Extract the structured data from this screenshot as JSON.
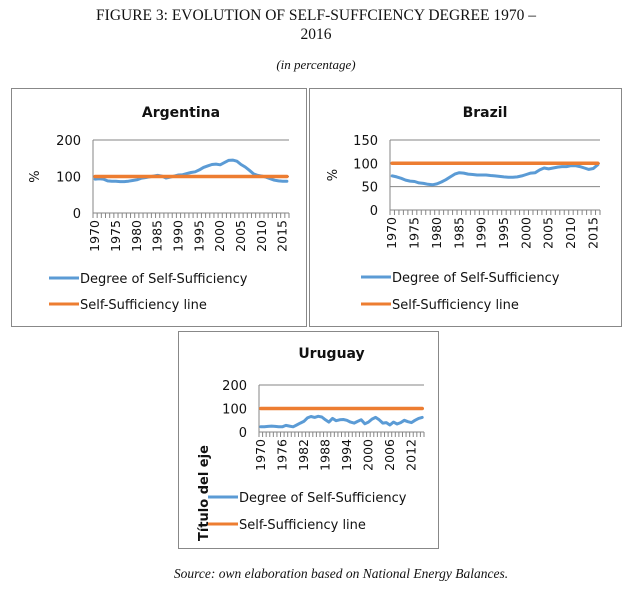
{
  "figure": {
    "title_line1": "FIGURE 3: EVOLUTION OF SELF-SUFFCIENCY DEGREE 1970 –",
    "title_line2": "2016",
    "subtitle": "(in percentage)",
    "source": "Source: own elaboration based on National Energy Balances."
  },
  "colors": {
    "degree": "#5B9BD5",
    "line": "#ED7D31",
    "grid": "#868686",
    "axis": "#868686"
  },
  "chart_data": [
    {
      "type": "line",
      "title": "Argentina",
      "ylabel": "%",
      "xlabel": "",
      "ylim": [
        0,
        200
      ],
      "yticks": [
        0,
        100,
        200
      ],
      "x_tick_labels": [
        "1970",
        "1975",
        "1980",
        "1985",
        "1990",
        "1995",
        "2000",
        "2005",
        "2010",
        "2015"
      ],
      "grid": true,
      "legend": "bottom",
      "x": [
        1970,
        1971,
        1972,
        1973,
        1974,
        1975,
        1976,
        1977,
        1978,
        1979,
        1980,
        1981,
        1982,
        1983,
        1984,
        1985,
        1986,
        1987,
        1988,
        1989,
        1990,
        1991,
        1992,
        1993,
        1994,
        1995,
        1996,
        1997,
        1998,
        1999,
        2000,
        2001,
        2002,
        2003,
        2004,
        2005,
        2006,
        2007,
        2008,
        2009,
        2010,
        2011,
        2012,
        2013,
        2014,
        2015,
        2016
      ],
      "series": [
        {
          "name": "Degree of Self-Sufficiency",
          "values": [
            93,
            94,
            93,
            88,
            87,
            87,
            86,
            86,
            87,
            89,
            91,
            95,
            97,
            99,
            101,
            103,
            101,
            96,
            98,
            101,
            104,
            105,
            108,
            111,
            113,
            118,
            125,
            129,
            133,
            134,
            132,
            138,
            144,
            145,
            142,
            133,
            126,
            117,
            107,
            103,
            101,
            98,
            94,
            90,
            88,
            87,
            87
          ]
        },
        {
          "name": "Self-Sufficiency line",
          "values": [
            100,
            100,
            100,
            100,
            100,
            100,
            100,
            100,
            100,
            100,
            100,
            100,
            100,
            100,
            100,
            100,
            100,
            100,
            100,
            100,
            100,
            100,
            100,
            100,
            100,
            100,
            100,
            100,
            100,
            100,
            100,
            100,
            100,
            100,
            100,
            100,
            100,
            100,
            100,
            100,
            100,
            100,
            100,
            100,
            100,
            100,
            100
          ]
        }
      ]
    },
    {
      "type": "line",
      "title": "Brazil",
      "ylabel": "%",
      "xlabel": "",
      "ylim": [
        0,
        150
      ],
      "yticks": [
        0,
        50,
        100,
        150
      ],
      "x_tick_labels": [
        "1970",
        "1975",
        "1980",
        "1985",
        "1990",
        "1995",
        "2000",
        "2005",
        "2010",
        "2015"
      ],
      "grid": true,
      "legend": "bottom",
      "x": [
        1970,
        1971,
        1972,
        1973,
        1974,
        1975,
        1976,
        1977,
        1978,
        1979,
        1980,
        1981,
        1982,
        1983,
        1984,
        1985,
        1986,
        1987,
        1988,
        1989,
        1990,
        1991,
        1992,
        1993,
        1994,
        1995,
        1996,
        1997,
        1998,
        1999,
        2000,
        2001,
        2002,
        2003,
        2004,
        2005,
        2006,
        2007,
        2008,
        2009,
        2010,
        2011,
        2012,
        2013,
        2014,
        2015,
        2016
      ],
      "series": [
        {
          "name": "Degree of Self-Sufficiency",
          "values": [
            73,
            71,
            68,
            64,
            62,
            61,
            58,
            57,
            55,
            54,
            56,
            60,
            65,
            71,
            77,
            80,
            79,
            77,
            76,
            75,
            75,
            75,
            74,
            73,
            72,
            71,
            70,
            70,
            71,
            73,
            76,
            79,
            80,
            86,
            90,
            88,
            90,
            92,
            93,
            93,
            95,
            95,
            93,
            90,
            87,
            89,
            97
          ]
        },
        {
          "name": "Self-Sufficiency line",
          "values": [
            100,
            100,
            100,
            100,
            100,
            100,
            100,
            100,
            100,
            100,
            100,
            100,
            100,
            100,
            100,
            100,
            100,
            100,
            100,
            100,
            100,
            100,
            100,
            100,
            100,
            100,
            100,
            100,
            100,
            100,
            100,
            100,
            100,
            100,
            100,
            100,
            100,
            100,
            100,
            100,
            100,
            100,
            100,
            100,
            100,
            100,
            100
          ]
        }
      ]
    },
    {
      "type": "line",
      "title": "Uruguay",
      "ylabel": "Título del eje",
      "xlabel": "",
      "ylim": [
        0,
        200
      ],
      "yticks": [
        0,
        100,
        200
      ],
      "x_tick_labels": [
        "1970",
        "1976",
        "1982",
        "1988",
        "1994",
        "2000",
        "2006",
        "2012"
      ],
      "grid": true,
      "legend": "bottom",
      "x": [
        1970,
        1971,
        1972,
        1973,
        1974,
        1975,
        1976,
        1977,
        1978,
        1979,
        1980,
        1981,
        1982,
        1983,
        1984,
        1985,
        1986,
        1987,
        1988,
        1989,
        1990,
        1991,
        1992,
        1993,
        1994,
        1995,
        1996,
        1997,
        1998,
        1999,
        2000,
        2001,
        2002,
        2003,
        2004,
        2005,
        2006,
        2007,
        2008,
        2009,
        2010,
        2011,
        2012,
        2013,
        2014,
        2015
      ],
      "series": [
        {
          "name": "Degree of Self-Sufficiency",
          "values": [
            22,
            22,
            24,
            25,
            24,
            22,
            22,
            28,
            25,
            22,
            30,
            38,
            45,
            60,
            66,
            62,
            67,
            64,
            52,
            42,
            58,
            48,
            52,
            53,
            50,
            42,
            38,
            45,
            52,
            35,
            42,
            55,
            62,
            52,
            38,
            40,
            30,
            42,
            34,
            40,
            50,
            44,
            40,
            50,
            58,
            62
          ]
        },
        {
          "name": "Self-Sufficiency line",
          "values": [
            100,
            100,
            100,
            100,
            100,
            100,
            100,
            100,
            100,
            100,
            100,
            100,
            100,
            100,
            100,
            100,
            100,
            100,
            100,
            100,
            100,
            100,
            100,
            100,
            100,
            100,
            100,
            100,
            100,
            100,
            100,
            100,
            100,
            100,
            100,
            100,
            100,
            100,
            100,
            100,
            100,
            100,
            100,
            100,
            100,
            100
          ]
        }
      ]
    }
  ]
}
